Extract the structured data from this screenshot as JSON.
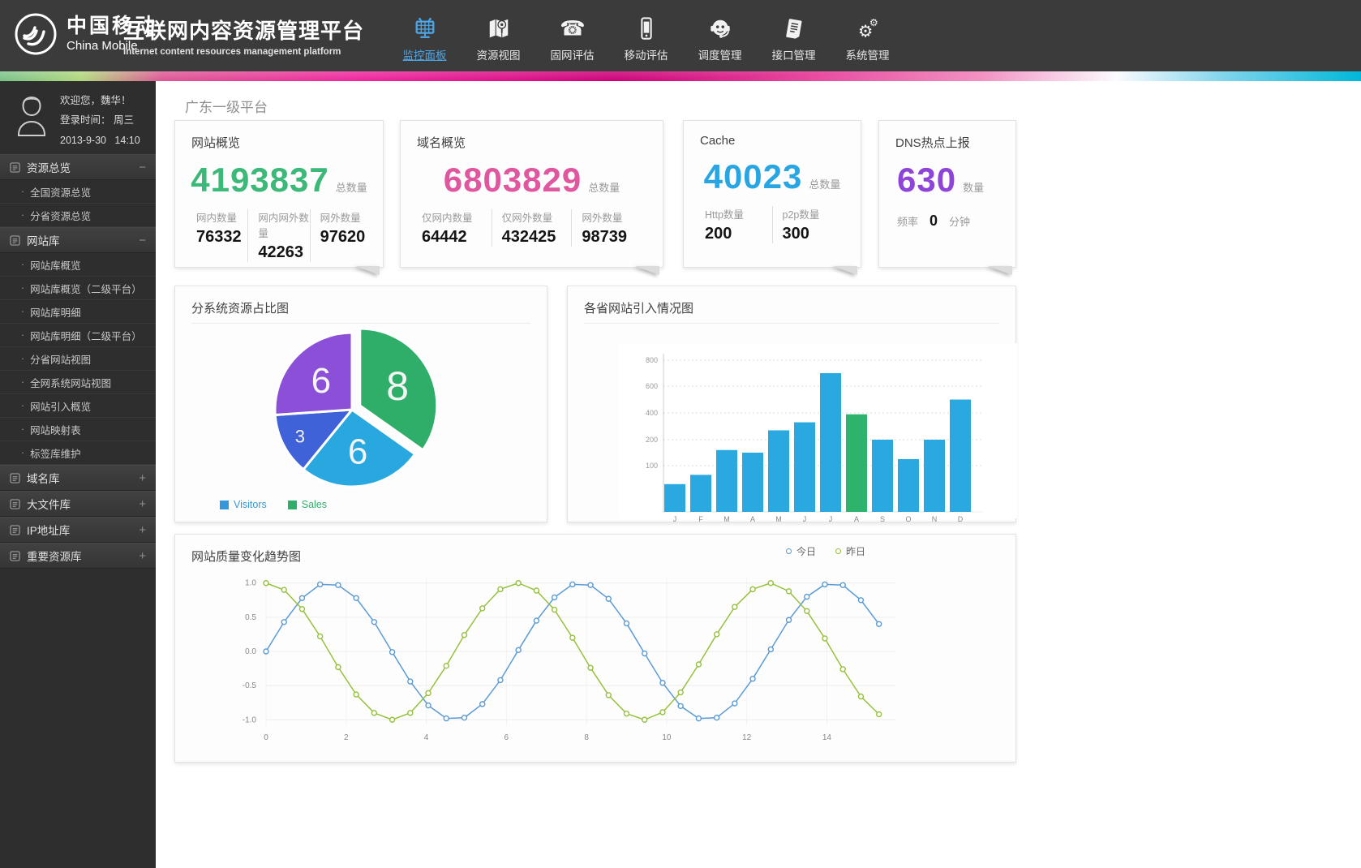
{
  "header": {
    "logo": {
      "zh": "中国移动",
      "en": "China Mobile"
    },
    "title": "互联网内容资源管理平台",
    "subtitle": "Internet content resources management platform",
    "nav": [
      {
        "label": "监控面板",
        "icon": "dashboard-icon",
        "name": "nav-monitor-panel",
        "active": true
      },
      {
        "label": "资源视图",
        "icon": "map-icon",
        "name": "nav-resource-view",
        "active": false
      },
      {
        "label": "固网评估",
        "icon": "phone-icon",
        "name": "nav-fixed-net-eval",
        "active": false
      },
      {
        "label": "移动评估",
        "icon": "mobile-icon",
        "name": "nav-mobile-eval",
        "active": false
      },
      {
        "label": "调度管理",
        "icon": "operator-icon",
        "name": "nav-dispatch-mgmt",
        "active": false
      },
      {
        "label": "接口管理",
        "icon": "clipboard-icon",
        "name": "nav-interface-mgmt",
        "active": false
      },
      {
        "label": "系统管理",
        "icon": "gears-icon",
        "name": "nav-system-mgmt",
        "active": false
      }
    ]
  },
  "sidebar": {
    "welcome": "欢迎您，魏华！",
    "login_label": "登录时间：",
    "login_day": "周三",
    "login_date": "2013-9-30",
    "login_time": "14:10",
    "sections": [
      {
        "label": "资源总览",
        "state": "expanded",
        "items": [
          "全国资源总览",
          "分省资源总览"
        ]
      },
      {
        "label": "网站库",
        "state": "expanded",
        "items": [
          "网站库概览",
          "网站库概览（二级平台）",
          "网站库明细",
          "网站库明细（二级平台）",
          "分省网站视图",
          "全网系统网站视图",
          "网站引入概览",
          "网站映射表",
          "标签库维护"
        ]
      },
      {
        "label": "域名库",
        "state": "collapsed",
        "items": []
      },
      {
        "label": "大文件库",
        "state": "collapsed",
        "items": []
      },
      {
        "label": "IP地址库",
        "state": "collapsed",
        "items": []
      },
      {
        "label": "重要资源库",
        "state": "collapsed",
        "items": []
      }
    ]
  },
  "main": {
    "page_title": "广东一级平台",
    "stat_cards": [
      {
        "title": "网站概览",
        "value": "4193837",
        "value_color": "#3cb878",
        "value_label": "总数量",
        "stats": [
          {
            "label": "网内数量",
            "value": "76332"
          },
          {
            "label": "网内网外数量",
            "value": "42263"
          },
          {
            "label": "网外数量",
            "value": "97620"
          }
        ]
      },
      {
        "title": "域名概览",
        "value": "6803829",
        "value_color": "#e0569f",
        "value_label": "总数量",
        "stats": [
          {
            "label": "仅网内数量",
            "value": "64442"
          },
          {
            "label": "仅网外数量",
            "value": "432425"
          },
          {
            "label": "网外数量",
            "value": "98739"
          }
        ]
      },
      {
        "title": "Cache",
        "value": "40023",
        "value_color": "#29a6e2",
        "value_label": "总数量",
        "stats": [
          {
            "label": "Http数量",
            "value": "200"
          },
          {
            "label": "p2p数量",
            "value": "300"
          }
        ]
      },
      {
        "title": "DNS热点上报",
        "value": "630",
        "value_color": "#8e44d8",
        "value_label": "数量",
        "freq": {
          "label": "频率",
          "value": "0",
          "unit": "分钟"
        }
      }
    ]
  },
  "chart_data": [
    {
      "type": "pie",
      "title": "分系统资源占比图",
      "slices": [
        {
          "label": "8",
          "value": 8,
          "color": "#2eae69",
          "exploded": true,
          "label_size": 50
        },
        {
          "label": "6",
          "value": 6,
          "color": "#29a8e0",
          "exploded": false,
          "label_size": 44
        },
        {
          "label": "3",
          "value": 3,
          "color": "#4062d8",
          "exploded": false,
          "label_size": 22
        },
        {
          "label": "6",
          "value": 6,
          "color": "#8c4fd8",
          "exploded": false,
          "label_size": 44
        }
      ],
      "legend": [
        {
          "label": "Visitors",
          "color": "#3398db"
        },
        {
          "label": "Sales",
          "color": "#2eae69"
        }
      ],
      "legend_position": "bottom-left"
    },
    {
      "type": "bar",
      "title": "各省网站引入情况图",
      "categories": [
        "J",
        "F",
        "M",
        "A",
        "M",
        "J",
        "J",
        "A",
        "S",
        "O",
        "N",
        "D"
      ],
      "values": [
        60,
        80,
        160,
        150,
        270,
        330,
        700,
        390,
        200,
        125,
        200,
        500
      ],
      "bar_color": "#29a9e0",
      "highlight_index": 7,
      "highlight_color": "#2db36b",
      "y_ticks": [
        100,
        200,
        400,
        600,
        800
      ],
      "ylim": [
        0,
        800
      ],
      "grid": "dashed-horizontal"
    },
    {
      "type": "line",
      "title": "网站质量变化趋势图",
      "x_ticks": [
        0,
        2,
        4,
        6,
        8,
        10,
        12,
        14
      ],
      "y_ticks": [
        1.0,
        0.5,
        0.0,
        -0.5,
        -1.0
      ],
      "ylim": [
        -1.08,
        1.08
      ],
      "xlim": [
        0,
        15.55
      ],
      "grid": "light-both",
      "legend_position": "top-right",
      "series": [
        {
          "name": "今日",
          "color": "#5b9bd5",
          "x": [
            0,
            0.45,
            0.9,
            1.35,
            1.8,
            2.25,
            2.7,
            3.15,
            3.6,
            4.05,
            4.5,
            4.95,
            5.4,
            5.85,
            6.3,
            6.75,
            7.2,
            7.65,
            8.1,
            8.55,
            9,
            9.45,
            9.9,
            10.35,
            10.8,
            11.25,
            11.7,
            12.15,
            12.6,
            13.05,
            13.5,
            13.95,
            14.4,
            14.85,
            15.3
          ],
          "y": [
            0,
            0.43,
            0.78,
            0.98,
            0.97,
            0.78,
            0.43,
            -0.01,
            -0.44,
            -0.79,
            -0.98,
            -0.97,
            -0.77,
            -0.42,
            0.02,
            0.45,
            0.79,
            0.98,
            0.97,
            0.77,
            0.41,
            -0.03,
            -0.46,
            -0.8,
            -0.98,
            -0.97,
            -0.76,
            -0.4,
            0.03,
            0.46,
            0.8,
            0.98,
            0.97,
            0.75,
            0.4
          ]
        },
        {
          "name": "昨日",
          "color": "#96c13d",
          "x": [
            0,
            0.45,
            0.9,
            1.35,
            1.8,
            2.25,
            2.7,
            3.15,
            3.6,
            4.05,
            4.5,
            4.95,
            5.4,
            5.85,
            6.3,
            6.75,
            7.2,
            7.65,
            8.1,
            8.55,
            9,
            9.45,
            9.9,
            10.35,
            10.8,
            11.25,
            11.7,
            12.15,
            12.6,
            13.05,
            13.5,
            13.95,
            14.4,
            14.85,
            15.3
          ],
          "y": [
            1,
            0.9,
            0.62,
            0.22,
            -0.23,
            -0.63,
            -0.9,
            -1,
            -0.9,
            -0.61,
            -0.21,
            0.24,
            0.63,
            0.91,
            1,
            0.89,
            0.61,
            0.2,
            -0.24,
            -0.64,
            -0.91,
            -1,
            -0.89,
            -0.6,
            -0.19,
            0.25,
            0.65,
            0.91,
            1,
            0.88,
            0.59,
            0.19,
            -0.26,
            -0.66,
            -0.92
          ]
        }
      ]
    }
  ]
}
